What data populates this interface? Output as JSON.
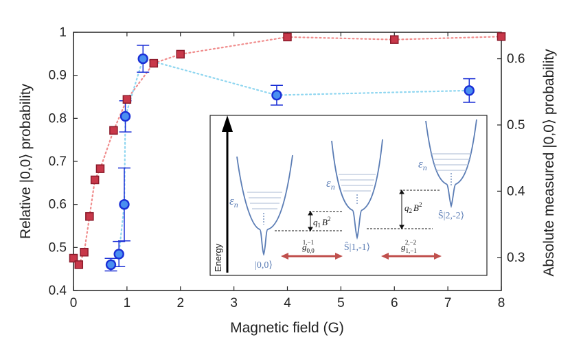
{
  "chart_data": {
    "type": "scatter",
    "xlabel": "Magnetic field (G)",
    "ylabel_left": "Relative |0,0⟩ probability",
    "ylabel_right": "Absolute measured |0,0⟩ probability",
    "xlim": [
      0,
      8
    ],
    "ylim_left": [
      0.4,
      1.0
    ],
    "ylim_right": [
      0.25,
      0.64
    ],
    "x_ticks": [
      0,
      1,
      2,
      3,
      4,
      5,
      6,
      7,
      8
    ],
    "y_ticks_left": [
      0.4,
      0.5,
      0.6,
      0.7,
      0.8,
      0.9,
      1
    ],
    "y_ticks_right": [
      0.3,
      0.4,
      0.5,
      0.6
    ],
    "x_tick_labels": [
      "0",
      "1",
      "2",
      "3",
      "4",
      "5",
      "6",
      "7",
      "8"
    ],
    "y_tick_labels_left": [
      "0.4",
      "0.5",
      "0.6",
      "0.7",
      "0.8",
      "0.9",
      "1"
    ],
    "y_tick_labels_right": [
      "0.3",
      "0.4",
      "0.5",
      "0.6"
    ],
    "colors": {
      "square_fill": "#c8384a",
      "square_edge": "#8b1a2a",
      "square_line": "#f08c8c",
      "circle_fill": "#4a8ff0",
      "circle_edge": "#1a2fd6",
      "circle_line": "#8fd6f0",
      "inset_blue": "#5b7db5",
      "arrow_red": "#c0504d"
    },
    "series": [
      {
        "name": "squares",
        "axis": "left",
        "x": [
          0.0,
          0.1,
          0.2,
          0.3,
          0.4,
          0.5,
          0.75,
          1.0,
          1.5,
          2.0,
          4.0,
          6.0,
          8.0
        ],
        "y": [
          0.475,
          0.46,
          0.489,
          0.572,
          0.657,
          0.683,
          0.772,
          0.844,
          0.928,
          0.949,
          0.989,
          0.983,
          0.99
        ]
      },
      {
        "name": "circles",
        "axis": "right",
        "x": [
          0.7,
          0.85,
          0.95,
          0.97,
          1.3,
          3.8,
          7.4
        ],
        "y": [
          0.289,
          0.305,
          0.38,
          0.513,
          0.6,
          0.545,
          0.552
        ],
        "err": [
          0.0095,
          0.019,
          0.055,
          0.0235,
          0.0203,
          0.0149,
          0.0178
        ]
      }
    ],
    "inset": {
      "energy_label": "Energy",
      "eps_label": "ε",
      "eps_sub": "n",
      "state1": "|0,0⟩",
      "state2": "Ŝ|1,-1⟩",
      "state3": "Ŝ|2,-2⟩",
      "gap1_q": "q",
      "gap1_sub": "1",
      "gap1_b": "B",
      "gap1_exp": "2",
      "gap2_q": "q",
      "gap2_sub": "2",
      "gap2_b": "B",
      "gap2_exp": "2",
      "coupling1_g": "g",
      "coupling1_sub": "0,0",
      "coupling1_sup": "1,−1",
      "coupling2_g": "g",
      "coupling2_sub": "1,−1",
      "coupling2_sup": "2,−2"
    }
  }
}
